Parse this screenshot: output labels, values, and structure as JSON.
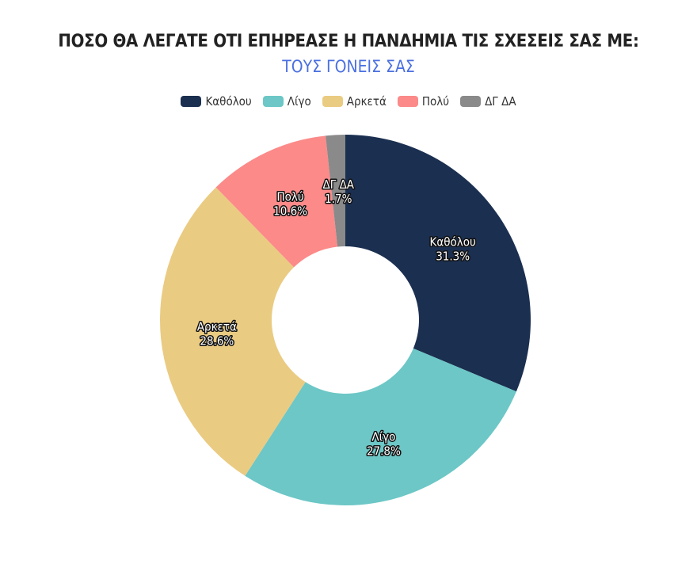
{
  "chart_data": {
    "type": "pie",
    "donut": true,
    "title": "ΠΟΣΟ ΘΑ ΛΕΓΑΤΕ ΟΤΙ ΕΠΗΡΕΑΣΕ Η ΠΑΝΔΗΜΙΑ ΤΙΣ ΣΧΕΣΕΙΣ ΣΑΣ ΜΕ:",
    "subtitle": "ΤΟΥΣ ΓΟΝΕΙΣ ΣΑΣ",
    "legend_position": "top",
    "categories": [
      "Καθόλου",
      "Λίγο",
      "Αρκετά",
      "Πολύ",
      "ΔΓ ΔΑ"
    ],
    "values": [
      31.3,
      27.8,
      28.6,
      10.6,
      1.7
    ],
    "value_labels": [
      "31.3%",
      "27.8%",
      "28.6%",
      "10.6%",
      "1.7%"
    ],
    "colors": [
      "#1b2f50",
      "#6cc7c6",
      "#eacb82",
      "#fb8a89",
      "#8a8a8a"
    ],
    "subtitle_color": "#4a6fe0"
  }
}
